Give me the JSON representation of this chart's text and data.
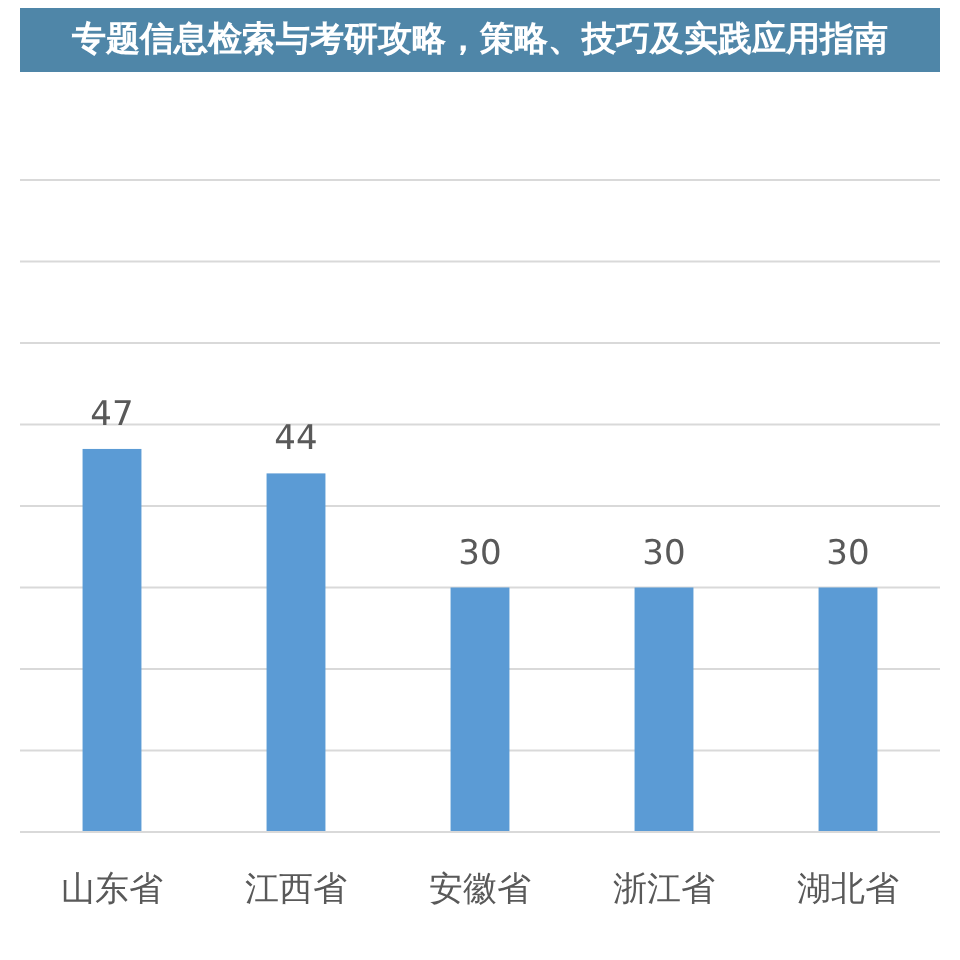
{
  "chart_data": {
    "type": "bar",
    "title": "专题信息检索与考研攻略，策略、技巧及实践应用指南",
    "categories": [
      "山东省",
      "江西省",
      "安徽省",
      "浙江省",
      "湖北省"
    ],
    "values": [
      47,
      44,
      30,
      30,
      30
    ],
    "color": "#5b9bd5",
    "data_labels": true,
    "ylim": [
      0,
      80
    ],
    "yticks": [
      {
        "value": 0,
        "label": null
      },
      {
        "value": 10,
        "label": null
      },
      {
        "value": 20,
        "label": null
      },
      {
        "value": 30,
        "label": null
      },
      {
        "value": 40,
        "label": null
      },
      {
        "value": 50,
        "label": null
      },
      {
        "value": 60,
        "label": null
      },
      {
        "value": 70,
        "label": null
      },
      {
        "value": 80,
        "label": null
      }
    ],
    "grid": "y"
  }
}
